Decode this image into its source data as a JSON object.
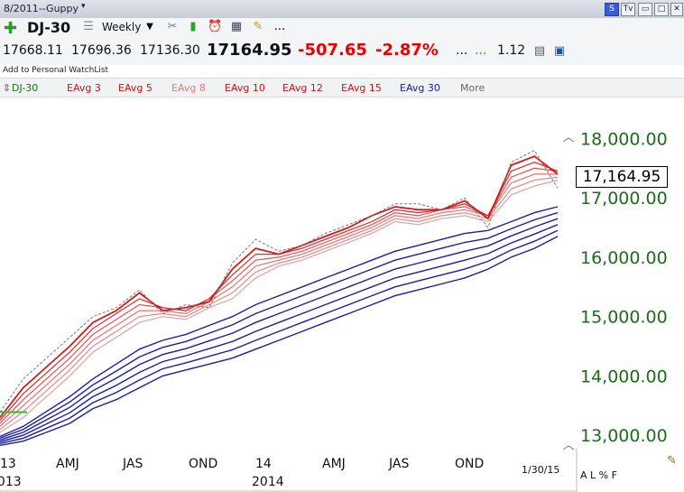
{
  "window": {
    "title": "8/2011--Guppy"
  },
  "toolbar": {
    "symbol": "DJ-30",
    "period": "Weekly",
    "more_label": "..."
  },
  "quote": {
    "open": "17668.11",
    "high": "17696.36",
    "low": "17136.30",
    "last": "17164.95",
    "change": "-507.65",
    "change_pct": "-2.87%",
    "dots1": "...",
    "dots2": "...",
    "ratio": "1.12",
    "watchlist_link": "Add to Personal WatchList"
  },
  "studies": [
    {
      "label": "DJ-30",
      "color": "#1a6e1a"
    },
    {
      "label": "EAvg 3",
      "color": "#cc1111"
    },
    {
      "label": "EAvg 5",
      "color": "#cc1111"
    },
    {
      "label": "EAvg 8",
      "color": "#e07a7a"
    },
    {
      "label": "EAvg 10",
      "color": "#cc1111"
    },
    {
      "label": "EAvg 12",
      "color": "#cc1111"
    },
    {
      "label": "EAvg 15",
      "color": "#cc1111"
    },
    {
      "label": "EAvg 30",
      "color": "#1a1a9a"
    },
    {
      "label": "More",
      "color": "#666666"
    }
  ],
  "price_box": "17,164.95",
  "bottom": {
    "date": "1/30/15",
    "scale_modes": "A L % F"
  },
  "chart_data": {
    "type": "line",
    "title": "",
    "ylim": [
      12850,
      18250
    ],
    "yticks": [
      "18,000.00",
      "17,000.00",
      "16,000.00",
      "15,000.00",
      "14,000.00",
      "13,000.00"
    ],
    "ytick_values": [
      18000,
      17000,
      16000,
      15000,
      14000,
      13000
    ],
    "xticks": [
      "13",
      "AMJ",
      "JAS",
      "OND",
      "14",
      "AMJ",
      "JAS",
      "OND"
    ],
    "xtick_sub": [
      "2013",
      "",
      "",
      "",
      "2014",
      "",
      "",
      ""
    ],
    "x": [
      "2013-01",
      "2013-02",
      "2013-03",
      "2013-04",
      "2013-05",
      "2013-06",
      "2013-07",
      "2013-08",
      "2013-09",
      "2013-10",
      "2013-11",
      "2013-12",
      "2014-01",
      "2014-02",
      "2014-03",
      "2014-04",
      "2014-05",
      "2014-06",
      "2014-07",
      "2014-08",
      "2014-09",
      "2014-10",
      "2014-11",
      "2014-12",
      "2015-01"
    ],
    "price": [
      13390,
      13950,
      14300,
      14650,
      15000,
      15150,
      15450,
      15050,
      15200,
      15150,
      15900,
      16300,
      16100,
      16200,
      16400,
      16550,
      16700,
      16900,
      16900,
      16800,
      17000,
      16500,
      17600,
      17800,
      17165
    ],
    "series": [
      {
        "values": [
          13300,
          13800,
          14150,
          14500,
          14900,
          15100,
          15400,
          15100,
          15150,
          15250,
          15800,
          16150,
          16050,
          16200,
          16350,
          16500,
          16700,
          16850,
          16800,
          16800,
          16950,
          16650,
          17550,
          17700,
          17400
        ]
      },
      {
        "values": [
          13250,
          13700,
          14050,
          14400,
          14800,
          15050,
          15300,
          15150,
          15100,
          15300,
          15700,
          16050,
          16050,
          16150,
          16300,
          16450,
          16600,
          16800,
          16750,
          16800,
          16900,
          16700,
          17450,
          17600,
          17450
        ]
      },
      {
        "values": [
          13200,
          13600,
          13950,
          14300,
          14700,
          14950,
          15200,
          15150,
          15100,
          15300,
          15600,
          15950,
          16000,
          16100,
          16250,
          16400,
          16550,
          16750,
          16700,
          16800,
          16850,
          16700,
          17350,
          17500,
          17450
        ]
      },
      {
        "values": [
          13150,
          13500,
          13850,
          14200,
          14600,
          14850,
          15100,
          15100,
          15050,
          15250,
          15500,
          15850,
          15950,
          16050,
          16200,
          16350,
          16500,
          16700,
          16650,
          16750,
          16800,
          16700,
          17250,
          17400,
          17400
        ]
      },
      {
        "values": [
          13100,
          13400,
          13750,
          14100,
          14500,
          14750,
          15000,
          15050,
          15000,
          15200,
          15400,
          15750,
          15900,
          16000,
          16150,
          16300,
          16450,
          16650,
          16600,
          16700,
          16750,
          16650,
          17150,
          17300,
          17350
        ]
      },
      {
        "values": [
          13050,
          13300,
          13650,
          14000,
          14400,
          14650,
          14900,
          15000,
          14950,
          15150,
          15300,
          15650,
          15850,
          15950,
          16100,
          16250,
          16400,
          16600,
          16550,
          16650,
          16700,
          16600,
          17050,
          17200,
          17300
        ]
      },
      {
        "values": [
          12980,
          13150,
          13400,
          13650,
          13950,
          14200,
          14450,
          14600,
          14700,
          14850,
          15000,
          15200,
          15350,
          15500,
          15650,
          15800,
          15950,
          16100,
          16200,
          16300,
          16400,
          16450,
          16600,
          16750,
          16850
        ]
      },
      {
        "values": [
          12950,
          13100,
          13330,
          13560,
          13850,
          14080,
          14320,
          14480,
          14580,
          14720,
          14860,
          15050,
          15200,
          15350,
          15500,
          15650,
          15800,
          15950,
          16050,
          16150,
          16250,
          16320,
          16480,
          16630,
          16750
        ]
      },
      {
        "values": [
          12920,
          13050,
          13260,
          13470,
          13750,
          13960,
          14190,
          14360,
          14460,
          14590,
          14720,
          14900,
          15050,
          15200,
          15350,
          15500,
          15650,
          15800,
          15900,
          16000,
          16100,
          16190,
          16360,
          16510,
          16650
        ]
      },
      {
        "values": [
          12890,
          13000,
          13190,
          13380,
          13650,
          13840,
          14060,
          14240,
          14340,
          14460,
          14580,
          14750,
          14900,
          15050,
          15200,
          15350,
          15500,
          15650,
          15750,
          15850,
          15950,
          16060,
          16240,
          16390,
          16550
        ]
      },
      {
        "values": [
          12860,
          12950,
          13120,
          13290,
          13550,
          13720,
          13930,
          14120,
          14220,
          14330,
          14440,
          14600,
          14750,
          14900,
          15050,
          15200,
          15350,
          15500,
          15600,
          15700,
          15800,
          15930,
          16120,
          16270,
          16450
        ]
      },
      {
        "values": [
          12830,
          12900,
          13050,
          13200,
          13450,
          13600,
          13800,
          14000,
          14100,
          14200,
          14300,
          14450,
          14600,
          14750,
          14900,
          15050,
          15200,
          15350,
          15450,
          15550,
          15650,
          15800,
          16000,
          16150,
          16350
        ]
      }
    ],
    "colors": {
      "fast_colors": [
        "#d81818",
        "#d82828",
        "#e45050",
        "#e87070",
        "#e48888",
        "#e0a0a0"
      ],
      "slow_color": "#1c1ca8",
      "price_color": "#777777",
      "highlight_color": "#33bb33"
    }
  }
}
